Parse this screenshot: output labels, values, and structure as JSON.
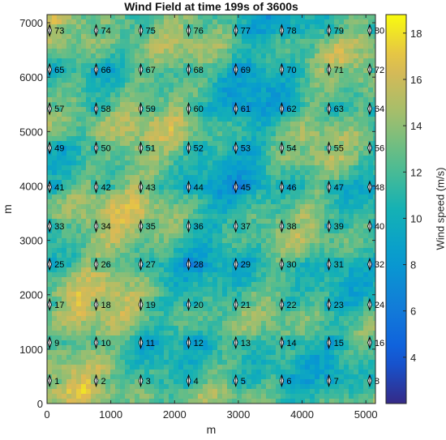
{
  "chart_data": {
    "type": "heatmap",
    "title": "Wind Field at time 199s of 3600s",
    "xlabel": "m",
    "ylabel": "m",
    "colorbar_label": "Wind speed (m/s)",
    "xlim": [
      0,
      5150
    ],
    "ylim": [
      0,
      7150
    ],
    "clim": [
      2,
      18.8
    ],
    "xticks": [
      0,
      1000,
      2000,
      3000,
      4000,
      5000
    ],
    "yticks": [
      0,
      1000,
      2000,
      3000,
      4000,
      5000,
      6000,
      7000
    ],
    "cticks": [
      4,
      6,
      8,
      10,
      12,
      14,
      16,
      18
    ],
    "turbine_x": [
      40,
      770,
      1470,
      2220,
      2960,
      3680,
      4420,
      5060
    ],
    "turbine_y": [
      420,
      1120,
      1820,
      2560,
      3260,
      3980,
      4700,
      5420,
      6140,
      6860
    ],
    "turbines": [
      {
        "id": "1"
      },
      {
        "id": "2"
      },
      {
        "id": "3"
      },
      {
        "id": "4"
      },
      {
        "id": "5"
      },
      {
        "id": "6"
      },
      {
        "id": "7"
      },
      {
        "id": "8"
      },
      {
        "id": "9"
      },
      {
        "id": "10"
      },
      {
        "id": "11"
      },
      {
        "id": "12"
      },
      {
        "id": "13"
      },
      {
        "id": "14"
      },
      {
        "id": "15"
      },
      {
        "id": "16"
      },
      {
        "id": "17"
      },
      {
        "id": "18"
      },
      {
        "id": "19"
      },
      {
        "id": "20"
      },
      {
        "id": "21"
      },
      {
        "id": "22"
      },
      {
        "id": "23"
      },
      {
        "id": "24"
      },
      {
        "id": "25"
      },
      {
        "id": "26"
      },
      {
        "id": "27"
      },
      {
        "id": "28"
      },
      {
        "id": "29"
      },
      {
        "id": "30"
      },
      {
        "id": "31"
      },
      {
        "id": "32"
      },
      {
        "id": "33"
      },
      {
        "id": "34"
      },
      {
        "id": "35"
      },
      {
        "id": "36"
      },
      {
        "id": "37"
      },
      {
        "id": "38"
      },
      {
        "id": "39"
      },
      {
        "id": "40"
      },
      {
        "id": "41"
      },
      {
        "id": "42"
      },
      {
        "id": "43"
      },
      {
        "id": "44"
      },
      {
        "id": "45"
      },
      {
        "id": "46"
      },
      {
        "id": "47"
      },
      {
        "id": "48"
      },
      {
        "id": "49"
      },
      {
        "id": "50"
      },
      {
        "id": "51"
      },
      {
        "id": "52"
      },
      {
        "id": "53"
      },
      {
        "id": "54"
      },
      {
        "id": "55"
      },
      {
        "id": "56"
      },
      {
        "id": "57"
      },
      {
        "id": "58"
      },
      {
        "id": "59"
      },
      {
        "id": "60"
      },
      {
        "id": "61"
      },
      {
        "id": "62"
      },
      {
        "id": "63"
      },
      {
        "id": "64"
      },
      {
        "id": "65"
      },
      {
        "id": "66"
      },
      {
        "id": "67"
      },
      {
        "id": "68"
      },
      {
        "id": "69"
      },
      {
        "id": "70"
      },
      {
        "id": "71"
      },
      {
        "id": "72"
      },
      {
        "id": "73"
      },
      {
        "id": "74"
      },
      {
        "id": "75"
      },
      {
        "id": "76"
      },
      {
        "id": "77"
      },
      {
        "id": "78"
      },
      {
        "id": "79"
      },
      {
        "id": "80"
      }
    ],
    "colormap": "parula",
    "grid": false
  }
}
